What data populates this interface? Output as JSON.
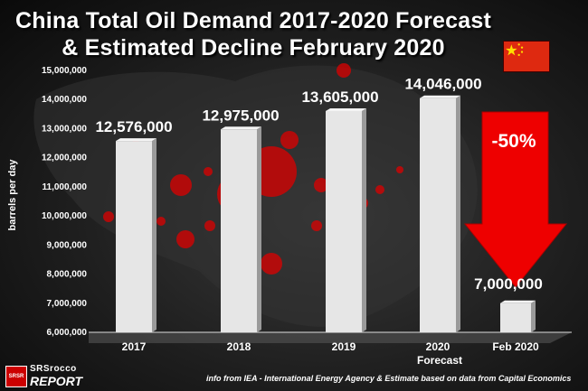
{
  "header": {
    "title_line1": "China Total Oil Demand 2017-2020 Forecast",
    "title_line2": "& Estimated Decline February 2020"
  },
  "colors": {
    "bar": "#e6e6e6",
    "arrow": "#ee0000",
    "flag": "#de2910",
    "star": "#ffde00"
  },
  "chart_data": {
    "type": "bar",
    "ylabel": "barrels per day",
    "ylim": [
      6000000,
      15000000
    ],
    "yticks": [
      "6,000,000",
      "7,000,000",
      "8,000,000",
      "9,000,000",
      "10,000,000",
      "11,000,000",
      "12,000,000",
      "13,000,000",
      "14,000,000",
      "15,000,000"
    ],
    "ytick_values": [
      6000000,
      7000000,
      8000000,
      9000000,
      10000000,
      11000000,
      12000000,
      13000000,
      14000000,
      15000000
    ],
    "categories": [
      "2017",
      "2018",
      "2019",
      "2020",
      "Feb 2020"
    ],
    "category_sublabels": [
      "",
      "",
      "",
      "Forecast",
      ""
    ],
    "values": [
      12576000,
      12975000,
      13605000,
      14046000,
      7000000
    ],
    "data_labels": [
      "12,576,000",
      "12,975,000",
      "13,605,000",
      "14,046,000",
      "7,000,000"
    ],
    "annotation": {
      "text": "-50%",
      "arrow_color": "#ee0000"
    }
  },
  "footer": {
    "source": "info from  IEA - International Energy Agency & Estimate based on data from Capital Economics",
    "logo_top": "SRSrocco",
    "logo_bottom": "REPORT",
    "logo_badge": "SRSR"
  }
}
